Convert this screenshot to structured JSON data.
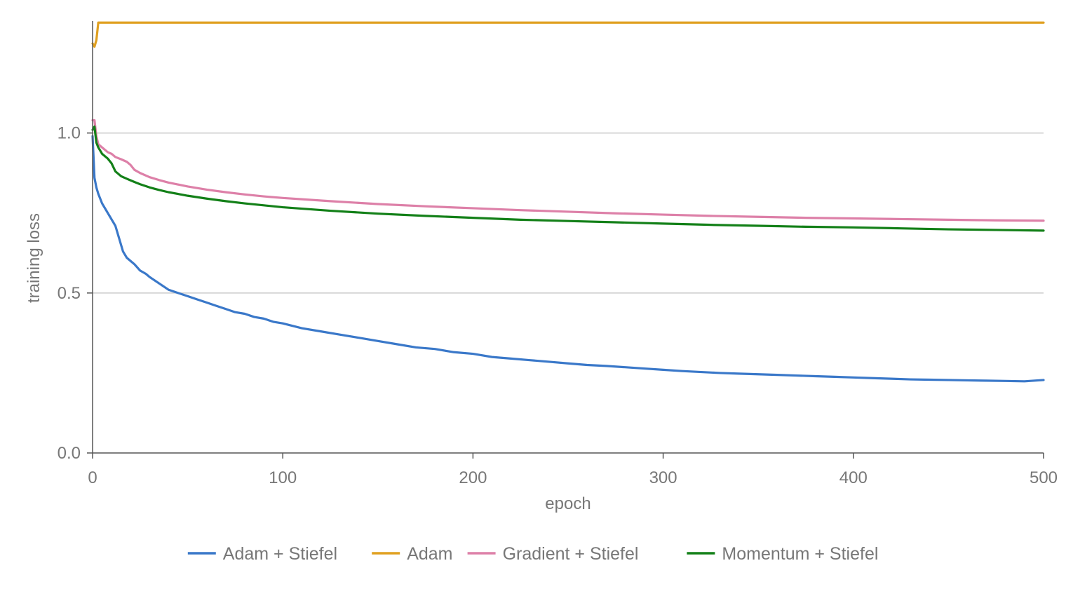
{
  "chart_data": {
    "type": "line",
    "title": "",
    "xlabel": "epoch",
    "ylabel": "training loss",
    "xlim": [
      0,
      500
    ],
    "ylim": [
      0,
      1.35
    ],
    "xticks": [
      0,
      100,
      200,
      300,
      400,
      500
    ],
    "xtick_labels": [
      "0",
      "100",
      "200",
      "300",
      "400",
      "500"
    ],
    "yticks": [
      0,
      0.5,
      1.0
    ],
    "ytick_labels": [
      "0.0",
      "0.5",
      "1.0"
    ],
    "grid": "horizontal",
    "legend_position": "bottom",
    "colors": {
      "axis": "#555555",
      "grid": "#cccccc",
      "text": "#777777"
    },
    "series": [
      {
        "name": "Adam + Stiefel",
        "color": "#3a78c9",
        "x": [
          0,
          1,
          2,
          3,
          5,
          8,
          10,
          12,
          14,
          16,
          18,
          20,
          22,
          25,
          28,
          30,
          35,
          40,
          45,
          50,
          55,
          60,
          65,
          70,
          75,
          80,
          85,
          90,
          95,
          100,
          110,
          120,
          130,
          140,
          150,
          160,
          170,
          180,
          190,
          200,
          210,
          220,
          230,
          240,
          250,
          260,
          270,
          280,
          290,
          300,
          310,
          320,
          330,
          340,
          350,
          360,
          370,
          380,
          390,
          400,
          410,
          420,
          430,
          440,
          450,
          460,
          470,
          480,
          490,
          500
        ],
        "y": [
          0.99,
          0.86,
          0.83,
          0.81,
          0.78,
          0.75,
          0.73,
          0.71,
          0.67,
          0.63,
          0.61,
          0.6,
          0.59,
          0.57,
          0.56,
          0.55,
          0.53,
          0.51,
          0.5,
          0.49,
          0.48,
          0.47,
          0.46,
          0.45,
          0.44,
          0.435,
          0.425,
          0.42,
          0.41,
          0.405,
          0.39,
          0.38,
          0.37,
          0.36,
          0.35,
          0.34,
          0.33,
          0.325,
          0.315,
          0.31,
          0.3,
          0.295,
          0.29,
          0.285,
          0.28,
          0.275,
          0.272,
          0.268,
          0.264,
          0.26,
          0.256,
          0.253,
          0.25,
          0.248,
          0.246,
          0.244,
          0.242,
          0.24,
          0.238,
          0.236,
          0.234,
          0.232,
          0.23,
          0.229,
          0.228,
          0.227,
          0.226,
          0.225,
          0.224,
          0.228
        ]
      },
      {
        "name": "Adam",
        "color": "#e0a020",
        "x": [
          0,
          1,
          2,
          3,
          5,
          10,
          50,
          100,
          200,
          300,
          400,
          500
        ],
        "y": [
          1.28,
          1.27,
          1.29,
          1.345,
          1.345,
          1.345,
          1.345,
          1.345,
          1.345,
          1.345,
          1.345,
          1.345
        ]
      },
      {
        "name": "Gradient + Stiefel",
        "color": "#dd80a8",
        "x": [
          0,
          1,
          2,
          3,
          5,
          8,
          10,
          12,
          15,
          18,
          20,
          22,
          25,
          30,
          35,
          40,
          50,
          60,
          70,
          80,
          90,
          100,
          125,
          150,
          175,
          200,
          225,
          250,
          275,
          300,
          325,
          350,
          375,
          400,
          425,
          450,
          475,
          500
        ],
        "y": [
          1.04,
          1.04,
          0.99,
          0.965,
          0.955,
          0.94,
          0.935,
          0.925,
          0.918,
          0.91,
          0.9,
          0.885,
          0.875,
          0.862,
          0.853,
          0.845,
          0.833,
          0.823,
          0.815,
          0.808,
          0.802,
          0.797,
          0.787,
          0.778,
          0.771,
          0.765,
          0.759,
          0.754,
          0.749,
          0.745,
          0.741,
          0.738,
          0.735,
          0.733,
          0.731,
          0.729,
          0.727,
          0.726
        ]
      },
      {
        "name": "Momentum + Stiefel",
        "color": "#138018",
        "x": [
          0,
          1,
          2,
          3,
          5,
          8,
          10,
          12,
          15,
          18,
          20,
          22,
          25,
          30,
          35,
          40,
          50,
          60,
          70,
          80,
          90,
          100,
          125,
          150,
          175,
          200,
          225,
          250,
          275,
          300,
          325,
          350,
          375,
          400,
          425,
          450,
          475,
          500
        ],
        "y": [
          1.01,
          1.02,
          0.97,
          0.955,
          0.935,
          0.92,
          0.905,
          0.88,
          0.865,
          0.857,
          0.852,
          0.847,
          0.84,
          0.83,
          0.822,
          0.815,
          0.804,
          0.795,
          0.787,
          0.78,
          0.774,
          0.768,
          0.757,
          0.748,
          0.741,
          0.735,
          0.729,
          0.725,
          0.721,
          0.717,
          0.713,
          0.71,
          0.707,
          0.705,
          0.702,
          0.699,
          0.697,
          0.695
        ]
      }
    ]
  }
}
